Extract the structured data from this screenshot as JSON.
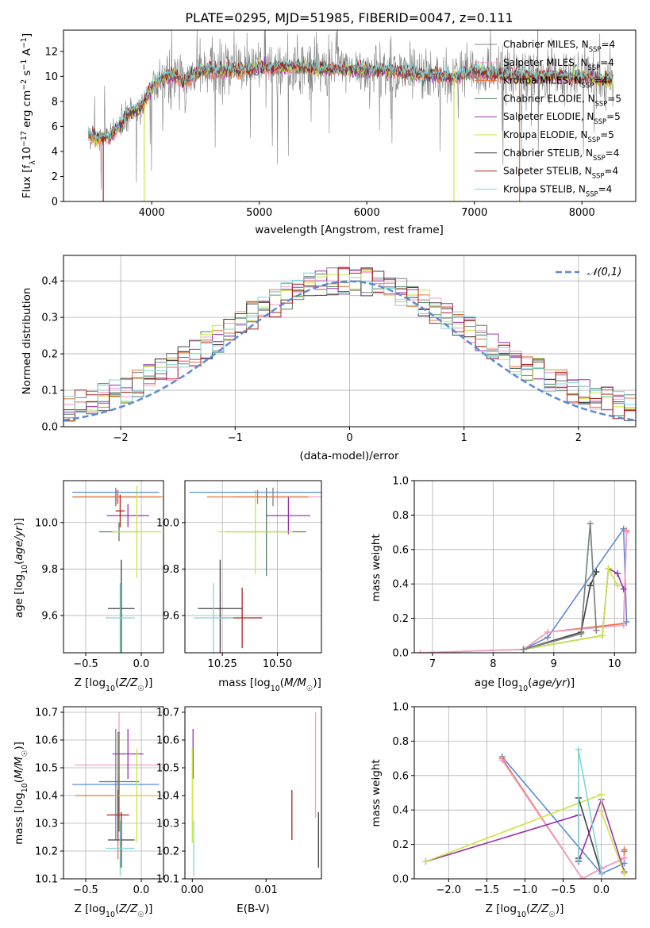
{
  "figure_title": "PLATE=0295, MJD=51985, FIBERID=0047, z=0.111",
  "colors": {
    "chabrier_miles": "#808080",
    "salpeter_miles": "#f29ccc",
    "kroupa_miles": "#e8733a",
    "chabrier_elodie": "#4f7f5f",
    "salpeter_elodie": "#9b30b0",
    "kroupa_elodie": "#c8e63c",
    "chabrier_stelib": "#404040",
    "salpeter_stelib": "#b02020",
    "kroupa_stelib": "#7fd6d6",
    "gauss": "#5b8bd6",
    "grid": "#b0b0b0"
  },
  "chart_data": [
    {
      "id": "spectrum",
      "type": "line",
      "xlabel": "wavelength [Angstrom, rest frame]",
      "ylabel": "Flux [f_λ 10^-17 erg cm^-2 s^-1 A^-1]",
      "xlim": [
        3180,
        8500
      ],
      "ylim": [
        0,
        13.7
      ],
      "xticks": [
        4000,
        5000,
        6000,
        7000,
        8000
      ],
      "yticks": [
        0,
        2,
        4,
        6,
        8,
        10,
        12
      ],
      "grid": false,
      "legend_position": "right",
      "legend": [
        {
          "name": "Chabrier MILES, N",
          "sub": "SSP",
          "suffix": "=4",
          "color_key": "chabrier_miles"
        },
        {
          "name": "Salpeter MILES, N",
          "sub": "SSP",
          "suffix": "=4",
          "color_key": "salpeter_miles"
        },
        {
          "name": "Kroupa MILES, N",
          "sub": "SSP",
          "suffix": "=4",
          "color_key": "kroupa_miles"
        },
        {
          "name": "Chabrier ELODIE, N",
          "sub": "SSP",
          "suffix": "=5",
          "color_key": "chabrier_elodie"
        },
        {
          "name": "Salpeter ELODIE, N",
          "sub": "SSP",
          "suffix": "=5",
          "color_key": "salpeter_elodie"
        },
        {
          "name": "Kroupa ELODIE, N",
          "sub": "SSP",
          "suffix": "=5",
          "color_key": "kroupa_elodie"
        },
        {
          "name": "Chabrier STELIB, N",
          "sub": "SSP",
          "suffix": "=4",
          "color_key": "chabrier_stelib"
        },
        {
          "name": "Salpeter STELIB, N",
          "sub": "SSP",
          "suffix": "=4",
          "color_key": "salpeter_stelib"
        },
        {
          "name": "Kroupa STELIB, N",
          "sub": "SSP",
          "suffix": "=4",
          "color_key": "kroupa_stelib"
        }
      ],
      "spectrum_envelope": {
        "wavelength": [
          3410,
          3500,
          3600,
          3700,
          3800,
          3900,
          4000,
          4100,
          4200,
          4300,
          4400,
          4500,
          4600,
          4700,
          4800,
          4900,
          5000,
          5200,
          5400,
          5600,
          5800,
          6000,
          6200,
          6400,
          6600,
          6800,
          7000,
          7200,
          7400,
          7600,
          7800,
          8000,
          8200,
          8290
        ],
        "model_flux": [
          5.5,
          5.0,
          5.2,
          6.0,
          7.1,
          7.5,
          9.2,
          10.0,
          10.1,
          9.6,
          10.2,
          10.6,
          10.5,
          10.5,
          10.6,
          10.5,
          10.7,
          10.8,
          10.8,
          10.6,
          10.6,
          10.5,
          10.5,
          10.3,
          10.1,
          10.0,
          10.4,
          10.2,
          10.1,
          10.0,
          10.0,
          9.9,
          9.8,
          9.7
        ],
        "data_noise": 1.2,
        "data_xlim": [
          3410,
          8290
        ]
      },
      "deep_dips": [
        3550,
        3930,
        6810,
        7420
      ]
    },
    {
      "id": "residual_histogram",
      "type": "histogram",
      "xlabel": "(data-model)/error",
      "ylabel": "Normed distribution",
      "xlim": [
        -2.5,
        2.5
      ],
      "ylim": [
        0,
        0.47
      ],
      "xticks": [
        -2,
        -1,
        0,
        1,
        2
      ],
      "yticks": [
        0.0,
        0.1,
        0.2,
        0.3,
        0.4
      ],
      "grid": true,
      "legend_position": "top-right",
      "gauss_label": "𝒩(0,1)",
      "bin_width": 0.1
    },
    {
      "id": "age_vs_Z",
      "type": "errorbar",
      "xlabel": "Z [log₁₀(Z/Z☉)]",
      "ylabel": "age [log₁₀(age/yr)]",
      "xlim": [
        -0.7,
        0.2
      ],
      "ylim": [
        9.44,
        10.18
      ],
      "xticks": [
        -0.5,
        0.0
      ],
      "yticks": [
        9.6,
        9.8,
        10.0
      ],
      "grid": true,
      "points": [
        {
          "color_key": "chabrier_miles",
          "x": -0.23,
          "xerr": 0.39,
          "y": 10.11,
          "yerr": 0.04
        },
        {
          "color_key": "salpeter_miles",
          "x": -0.22,
          "xerr": 0.39,
          "y": 10.11,
          "yerr": 0.03
        },
        {
          "color_key": "kroupa_miles",
          "x": -0.21,
          "xerr": 0.4,
          "y": 10.11,
          "yerr": 0.03
        },
        {
          "color_key": "chabrier_elodie",
          "x": -0.2,
          "xerr": 0.18,
          "y": 9.96,
          "yerr": 0.04
        },
        {
          "color_key": "salpeter_elodie",
          "x": -0.12,
          "xerr": 0.19,
          "y": 10.03,
          "yerr": 0.05
        },
        {
          "color_key": "kroupa_elodie",
          "x": -0.04,
          "xerr": 0.22,
          "y": 9.96,
          "yerr": 0.2
        },
        {
          "color_key": "chabrier_stelib",
          "x": -0.18,
          "xerr": 0.12,
          "y": 9.63,
          "yerr": 0.21
        },
        {
          "color_key": "salpeter_stelib",
          "x": -0.19,
          "xerr": 0.04,
          "y": 10.05,
          "yerr": 0.07
        },
        {
          "color_key": "kroupa_stelib",
          "x": -0.19,
          "xerr": 0.13,
          "y": 9.59,
          "yerr": 0.15
        },
        {
          "color_key": "gauss",
          "x": -0.23,
          "xerr": 0.39,
          "y": 10.13,
          "yerr": 0.0
        }
      ]
    },
    {
      "id": "age_vs_mass",
      "type": "errorbar",
      "xlabel": "mass [log₁₀(M/M☉)]",
      "ylabel": "",
      "xlim": [
        10.08,
        10.7
      ],
      "ylim": [
        9.44,
        10.18
      ],
      "xticks": [
        10.25,
        10.5
      ],
      "yticks": [
        9.6,
        9.8,
        10.0
      ],
      "grid": true,
      "points": [
        {
          "color_key": "chabrier_miles",
          "x": 10.48,
          "xerr": 0.16,
          "y": 10.11,
          "yerr": 0.04
        },
        {
          "color_key": "salpeter_miles",
          "x": 10.5,
          "xerr": 0.2,
          "y": 10.11,
          "yerr": 0.04
        },
        {
          "color_key": "kroupa_miles",
          "x": 10.41,
          "xerr": 0.23,
          "y": 10.11,
          "yerr": 0.03
        },
        {
          "color_key": "chabrier_elodie",
          "x": 10.45,
          "xerr": 0.18,
          "y": 9.96,
          "yerr": 0.19
        },
        {
          "color_key": "salpeter_elodie",
          "x": 10.55,
          "xerr": 0.1,
          "y": 10.03,
          "yerr": 0.08
        },
        {
          "color_key": "kroupa_elodie",
          "x": 10.4,
          "xerr": 0.17,
          "y": 9.96,
          "yerr": 0.18
        },
        {
          "color_key": "chabrier_stelib",
          "x": 10.24,
          "xerr": 0.1,
          "y": 9.63,
          "yerr": 0.21
        },
        {
          "color_key": "salpeter_stelib",
          "x": 10.34,
          "xerr": 0.09,
          "y": 9.59,
          "yerr": 0.13
        },
        {
          "color_key": "kroupa_stelib",
          "x": 10.21,
          "xerr": 0.09,
          "y": 9.59,
          "yerr": 0.15
        },
        {
          "color_key": "gauss",
          "x": 10.4,
          "xerr": 0.3,
          "y": 10.13,
          "yerr": 0.0
        }
      ]
    },
    {
      "id": "weight_vs_age",
      "type": "line",
      "xlabel": "age [log₁₀(age/yr)]",
      "ylabel": "mass weight",
      "xlim": [
        6.7,
        10.35
      ],
      "ylim": [
        0,
        1.0
      ],
      "xticks": [
        7,
        8,
        9,
        10
      ],
      "yticks": [
        0.0,
        0.2,
        0.4,
        0.6,
        0.8,
        1.0
      ],
      "grid": true,
      "series": [
        {
          "color_key": "gauss",
          "x": [
            8.5,
            8.9,
            10.15,
            10.2
          ],
          "y": [
            0.02,
            0.09,
            0.72,
            0.18
          ]
        },
        {
          "color_key": "kroupa_miles",
          "x": [
            6.8,
            8.5,
            8.9,
            10.15,
            10.2
          ],
          "y": [
            0.0,
            0.02,
            0.12,
            0.17,
            0.71
          ]
        },
        {
          "color_key": "salpeter_miles",
          "x": [
            6.8,
            8.5,
            8.9,
            10.15,
            10.2
          ],
          "y": [
            0.0,
            0.02,
            0.12,
            0.16,
            0.7
          ]
        },
        {
          "color_key": "salpeter_elodie",
          "x": [
            8.5,
            9.8,
            9.9,
            10.05,
            10.15
          ],
          "y": [
            0.02,
            0.1,
            0.49,
            0.46,
            0.37
          ]
        },
        {
          "color_key": "kroupa_elodie",
          "x": [
            8.5,
            9.8,
            9.9,
            10.05
          ],
          "y": [
            0.02,
            0.1,
            0.49,
            0.39
          ]
        },
        {
          "color_key": "chabrier_stelib",
          "x": [
            8.5,
            9.45,
            9.6,
            9.7
          ],
          "y": [
            0.02,
            0.12,
            0.39,
            0.47
          ]
        },
        {
          "color_key": "kroupa_stelib",
          "x": [
            8.5,
            9.45,
            9.6,
            9.7
          ],
          "y": [
            0.02,
            0.11,
            0.75,
            0.13
          ]
        },
        {
          "color_key": "chabrier_miles",
          "x": [
            8.5,
            9.45,
            9.6,
            9.7
          ],
          "y": [
            0.02,
            0.11,
            0.75,
            0.13
          ]
        }
      ]
    },
    {
      "id": "mass_vs_Z",
      "type": "errorbar",
      "xlabel": "Z [log₁₀(Z/Z☉)]",
      "ylabel": "mass [log₁₀(M/M☉)]",
      "xlim": [
        -0.7,
        0.2
      ],
      "ylim": [
        10.1,
        10.72
      ],
      "xticks": [
        -0.5,
        0.0
      ],
      "yticks": [
        10.1,
        10.2,
        10.3,
        10.4,
        10.5,
        10.6,
        10.7
      ],
      "grid": true,
      "points": [
        {
          "color_key": "salpeter_miles",
          "x": -0.2,
          "xerr": 0.4,
          "y": 10.51,
          "yerr": 0.19
        },
        {
          "color_key": "kroupa_miles",
          "x": -0.21,
          "xerr": 0.38,
          "y": 10.4,
          "yerr": 0.23
        },
        {
          "color_key": "gauss",
          "x": -0.23,
          "xerr": 0.39,
          "y": 10.44,
          "yerr": 0.2
        },
        {
          "color_key": "chabrier_elodie",
          "x": -0.2,
          "xerr": 0.18,
          "y": 10.45,
          "yerr": 0.18
        },
        {
          "color_key": "salpeter_elodie",
          "x": -0.12,
          "xerr": 0.14,
          "y": 10.55,
          "yerr": 0.09
        },
        {
          "color_key": "kroupa_elodie",
          "x": -0.04,
          "xerr": 0.2,
          "y": 10.4,
          "yerr": 0.17
        },
        {
          "color_key": "salpeter_stelib",
          "x": -0.21,
          "xerr": 0.1,
          "y": 10.33,
          "yerr": 0.09
        },
        {
          "color_key": "chabrier_stelib",
          "x": -0.18,
          "xerr": 0.12,
          "y": 10.24,
          "yerr": 0.1
        },
        {
          "color_key": "kroupa_stelib",
          "x": -0.19,
          "xerr": 0.13,
          "y": 10.21,
          "yerr": 0.1
        }
      ]
    },
    {
      "id": "mass_vs_EBV",
      "type": "errorbar",
      "xlabel": "E(B-V)",
      "ylabel": "",
      "xlim": [
        -0.001,
        0.0175
      ],
      "ylim": [
        10.1,
        10.72
      ],
      "xticks": [
        0.0,
        0.01
      ],
      "yticks": [
        10.1,
        10.2,
        10.3,
        10.4,
        10.5,
        10.6,
        10.7
      ],
      "grid": false,
      "points": [
        {
          "color_key": "salpeter_elodie",
          "x": 0.0001,
          "xerr": 0,
          "y": 10.55,
          "yerr": 0.09
        },
        {
          "color_key": "kroupa_elodie",
          "x": 0.0,
          "xerr": 0,
          "y": 10.4,
          "yerr": 0.17
        },
        {
          "color_key": "kroupa_stelib",
          "x": 0.0002,
          "xerr": 0,
          "y": 10.21,
          "yerr": 0.1
        },
        {
          "color_key": "salpeter_stelib",
          "x": 0.0135,
          "xerr": 0,
          "y": 10.33,
          "yerr": 0.09
        },
        {
          "color_key": "salpeter_miles",
          "x": 0.0167,
          "xerr": 0,
          "y": 10.51,
          "yerr": 0.19
        },
        {
          "color_key": "chabrier_stelib",
          "x": 0.0171,
          "xerr": 0,
          "y": 10.24,
          "yerr": 0.1
        }
      ]
    },
    {
      "id": "weight_vs_Z",
      "type": "line",
      "xlabel": "Z [log₁₀(Z/Z☉)]",
      "ylabel": "mass weight",
      "xlim": [
        -2.45,
        0.45
      ],
      "ylim": [
        0,
        1.0
      ],
      "xticks": [
        -2.0,
        -1.5,
        -1.0,
        -0.5,
        0.0
      ],
      "yticks": [
        0.0,
        0.2,
        0.4,
        0.6,
        0.8,
        1.0
      ],
      "grid": true,
      "series": [
        {
          "color_key": "gauss",
          "x": [
            -1.3,
            0.0,
            0.3,
            0.3
          ],
          "y": [
            0.71,
            0.03,
            0.09,
            0.16
          ]
        },
        {
          "color_key": "kroupa_miles",
          "x": [
            -1.3,
            -0.25,
            0.0,
            0.3,
            0.3
          ],
          "y": [
            0.7,
            0.0,
            0.06,
            0.12,
            0.17
          ]
        },
        {
          "color_key": "salpeter_miles",
          "x": [
            -1.3,
            -0.25,
            0.0,
            0.3
          ],
          "y": [
            0.69,
            0.0,
            0.06,
            0.12
          ]
        },
        {
          "color_key": "salpeter_elodie",
          "x": [
            -2.3,
            -0.3,
            -0.3,
            0.0,
            0.3
          ],
          "y": [
            0.1,
            0.37,
            0.1,
            0.46,
            0.04
          ]
        },
        {
          "color_key": "kroupa_elodie",
          "x": [
            -2.3,
            0.0,
            0.0,
            0.3
          ],
          "y": [
            0.1,
            0.49,
            0.39,
            0.03
          ]
        },
        {
          "color_key": "chabrier_stelib",
          "x": [
            -0.3,
            -0.3,
            0.0
          ],
          "y": [
            0.12,
            0.47,
            0.03
          ]
        },
        {
          "color_key": "kroupa_stelib",
          "x": [
            -0.3,
            -0.3,
            0.0
          ],
          "y": [
            0.11,
            0.75,
            0.03
          ]
        }
      ]
    }
  ]
}
